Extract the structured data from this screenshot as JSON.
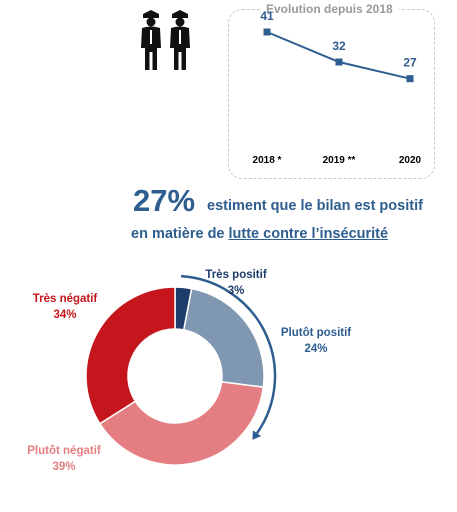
{
  "colors": {
    "accent_blue": "#2e5d8f",
    "tres_positif": "#1f3d6b",
    "plutot_positif": "#7f97b1",
    "plutot_negatif": "#e47e82",
    "tres_negatif": "#c4161c",
    "icon": "#111111",
    "dashed_border": "#c8c8c8"
  },
  "icon": "two-police-officers-icon",
  "headline": {
    "percent": "27%",
    "line1": "estiment que le bilan est positif",
    "line2_prefix": "en matière de ",
    "line2_underlined": "lutte contre l’insécurité"
  },
  "chart_data": [
    {
      "type": "line",
      "title": "Evolution depuis 2018",
      "x": [
        "2018 *",
        "2019 **",
        "2020"
      ],
      "series": [
        {
          "values": [
            41,
            32,
            27
          ]
        }
      ],
      "grid": false,
      "legend": "none"
    },
    {
      "type": "pie",
      "style": "donut",
      "slices": [
        {
          "label": "Très positif",
          "value": 3,
          "value_label": "3%",
          "color": "#1f3d6b"
        },
        {
          "label": "Plutôt positif",
          "value": 24,
          "value_label": "24%",
          "color": "#7f97b1"
        },
        {
          "label": "Plutôt négatif",
          "value": 39,
          "value_label": "39%",
          "color": "#e47e82"
        },
        {
          "label": "Très négatif",
          "value": 34,
          "value_label": "34%",
          "color": "#c4161c"
        }
      ]
    }
  ]
}
